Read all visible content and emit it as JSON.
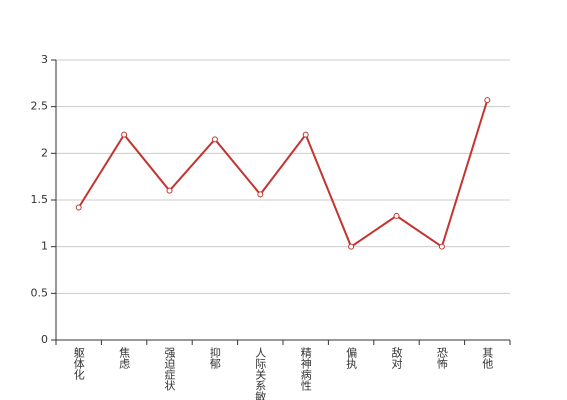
{
  "chart_data": {
    "type": "line",
    "categories": [
      "躯体化",
      "焦虑",
      "强迫症状",
      "抑郁",
      "人际关系敏感",
      "精神病性",
      "偏执",
      "敌对",
      "恐怖",
      "其他"
    ],
    "values": [
      1.42,
      2.2,
      1.6,
      2.15,
      1.56,
      2.2,
      1.0,
      1.33,
      1.0,
      2.57
    ],
    "color": "#c23531",
    "ylim": [
      0,
      3
    ],
    "yticks": [
      0,
      0.5,
      1,
      1.5,
      2,
      2.5,
      3
    ],
    "grid": true
  }
}
